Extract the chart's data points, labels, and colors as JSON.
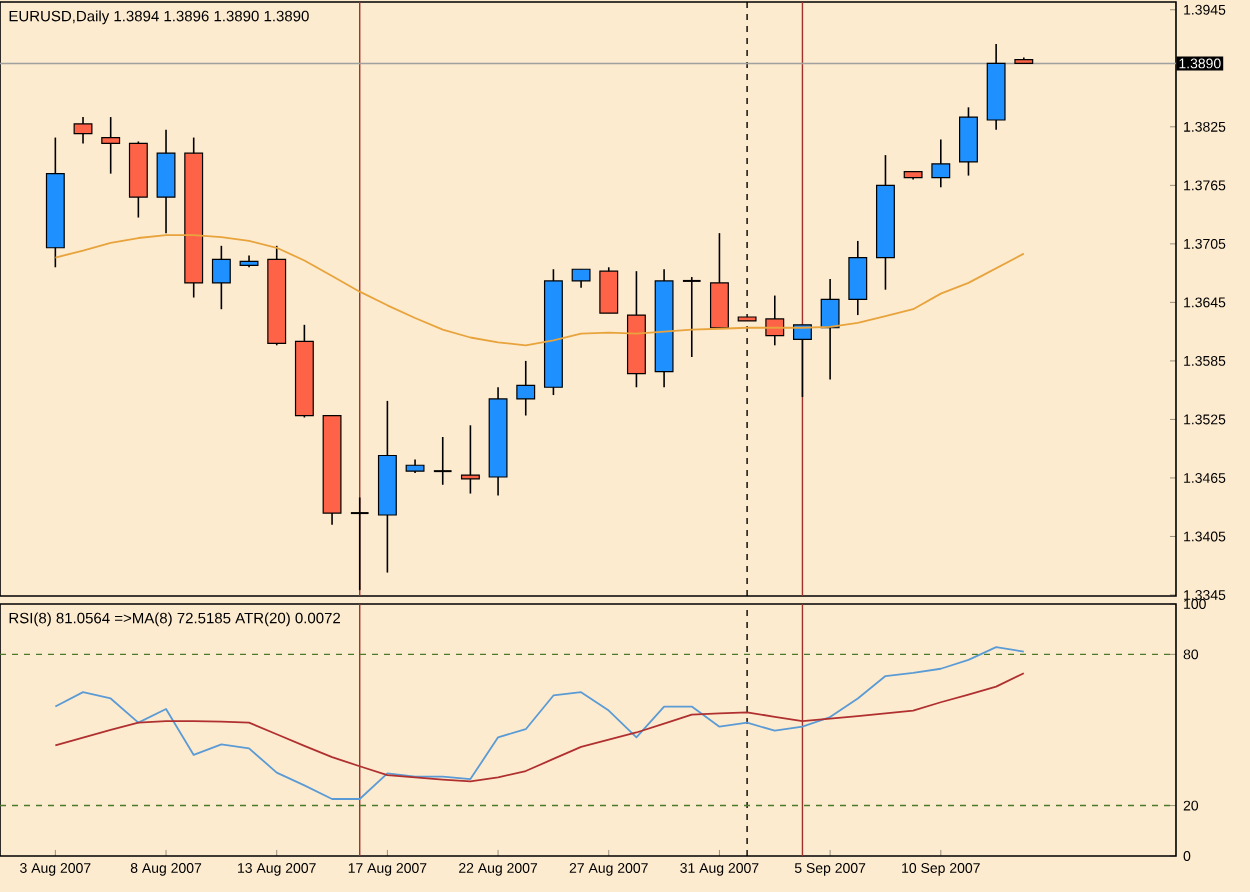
{
  "chart_data": [
    {
      "type": "candlestick",
      "title": "EURUSD,Daily  1.3894 1.3896 1.3890 1.3890",
      "categories": [
        null,
        null,
        null,
        null,
        null,
        null,
        null,
        null,
        null,
        null,
        null,
        null,
        null,
        null,
        null,
        null,
        null,
        null,
        null,
        null,
        null,
        null,
        null,
        null,
        null,
        null,
        null,
        null,
        null,
        null,
        null,
        null,
        null,
        null,
        null,
        null
      ],
      "ohlc": [
        [
          1.3701,
          1.3814,
          1.3681,
          1.3777
        ],
        [
          1.3828,
          1.3835,
          1.3808,
          1.3818
        ],
        [
          1.3814,
          1.3835,
          1.3777,
          1.3808
        ],
        [
          1.3808,
          1.381,
          1.3732,
          1.3753
        ],
        [
          1.3753,
          1.3822,
          1.3716,
          1.3798
        ],
        [
          1.3798,
          1.3814,
          1.365,
          1.3665
        ],
        [
          1.3665,
          1.3703,
          1.3638,
          1.3689
        ],
        [
          1.3683,
          1.3693,
          1.3681,
          1.3687
        ],
        [
          1.3689,
          1.3703,
          1.3601,
          1.3603
        ],
        [
          1.3605,
          1.3622,
          1.3527,
          1.3529
        ],
        [
          1.3529,
          1.3529,
          1.3417,
          1.3429
        ],
        [
          1.3429,
          1.3445,
          1.335,
          1.3429
        ],
        [
          1.3427,
          1.3544,
          1.3368,
          1.3488
        ],
        [
          1.3472,
          1.3484,
          1.347,
          1.3478
        ],
        [
          1.3472,
          1.3507,
          1.3458,
          1.3472
        ],
        [
          1.3468,
          1.3519,
          1.3449,
          1.3464
        ],
        [
          1.3466,
          1.3558,
          1.3447,
          1.3546
        ],
        [
          1.3546,
          1.3585,
          1.3529,
          1.356
        ],
        [
          1.3558,
          1.3679,
          1.355,
          1.3667
        ],
        [
          1.3667,
          1.3679,
          1.366,
          1.3679
        ],
        [
          1.3677,
          1.3681,
          1.3634,
          1.3634
        ],
        [
          1.3632,
          1.3677,
          1.3558,
          1.3572
        ],
        [
          1.3574,
          1.3679,
          1.3558,
          1.3667
        ],
        [
          1.3667,
          1.3671,
          1.3589,
          1.3667
        ],
        [
          1.3665,
          1.3716,
          1.3619,
          1.3619
        ],
        [
          1.363,
          1.363,
          1.3626,
          1.3626
        ],
        [
          1.3628,
          1.3652,
          1.3601,
          1.3611
        ],
        [
          1.3607,
          1.3622,
          1.3548,
          1.3622
        ],
        [
          1.3619,
          1.3669,
          1.3566,
          1.3648
        ],
        [
          1.3648,
          1.3708,
          1.3632,
          1.3691
        ],
        [
          1.3691,
          1.3796,
          1.3658,
          1.3765
        ],
        [
          1.3779,
          1.3779,
          1.3771,
          1.3773
        ],
        [
          1.3773,
          1.3812,
          1.3763,
          1.3787
        ],
        [
          1.3789,
          1.3845,
          1.3775,
          1.3835
        ],
        [
          1.3832,
          1.391,
          1.3822,
          1.389
        ],
        [
          1.3894,
          1.3896,
          1.389,
          1.389
        ]
      ],
      "colors": [
        "#1e90ff",
        "#ff6347",
        "#ff6347",
        "#ff6347",
        "#1e90ff",
        "#ff6347",
        "#1e90ff",
        "#1e90ff",
        "#ff6347",
        "#ff6347",
        "#ff6347",
        "#000000",
        "#1e90ff",
        "#1e90ff",
        "#000000",
        "#ff6347",
        "#1e90ff",
        "#1e90ff",
        "#1e90ff",
        "#1e90ff",
        "#ff6347",
        "#ff6347",
        "#1e90ff",
        "#000000",
        "#ff6347",
        "#ff6347",
        "#ff6347",
        "#1e90ff",
        "#1e90ff",
        "#1e90ff",
        "#1e90ff",
        "#ff6347",
        "#1e90ff",
        "#1e90ff",
        "#1e90ff",
        "#ff6347"
      ],
      "series": [
        {
          "type": "line",
          "color": "#e8a33c",
          "values": [
            1.3691,
            1.3698,
            1.3706,
            1.3711,
            1.3714,
            1.3714,
            1.3712,
            1.3708,
            1.3701,
            1.3688,
            1.3672,
            1.3656,
            1.3642,
            1.3629,
            1.3617,
            1.3609,
            1.3604,
            1.3601,
            1.3606,
            1.3613,
            1.3614,
            1.3613,
            1.3615,
            1.3617,
            1.3618,
            1.3619,
            1.3619,
            1.3619,
            1.362,
            1.3624,
            1.3631,
            1.3638,
            1.3654,
            1.3665,
            1.368,
            1.3695
          ]
        }
      ],
      "ylim": [
        1.3344,
        1.3953
      ],
      "yticks": [
        1.3945,
        1.3825,
        1.3765,
        1.3705,
        1.3645,
        1.3585,
        1.3525,
        1.3465,
        1.3405,
        1.3345
      ],
      "ref_lines": [
        {
          "axis": "y",
          "value": 1.389,
          "label": "1.3890",
          "color": "#a0a0a0"
        }
      ]
    },
    {
      "type": "line",
      "title": "RSI(8) 81.0564  =>MA(8) 72.5185  ATR(20) 0.0072",
      "categories": [
        "3 Aug 2007",
        null,
        null,
        null,
        "8 Aug 2007",
        null,
        null,
        null,
        "13 Aug 2007",
        null,
        null,
        null,
        "17 Aug 2007",
        null,
        null,
        null,
        "22 Aug 2007",
        null,
        null,
        null,
        "27 Aug 2007",
        null,
        null,
        null,
        "31 Aug 2007",
        null,
        null,
        null,
        "5 Sep 2007",
        null,
        null,
        null,
        "10 Sep 2007",
        null,
        null,
        null
      ],
      "series": [
        {
          "color": "#5b9bd5",
          "values": [
            59.3,
            65.0,
            62.5,
            52.9,
            58.3,
            40.1,
            44.3,
            42.7,
            33.1,
            28.0,
            22.6,
            22.6,
            32.8,
            31.5,
            31.5,
            30.5,
            47.1,
            50.3,
            63.7,
            65.0,
            57.7,
            47.1,
            59.3,
            59.3,
            51.3,
            52.9,
            49.7,
            51.3,
            55.1,
            62.5,
            71.4,
            72.7,
            74.3,
            77.8,
            82.9,
            81.1
          ]
        },
        {
          "color": "#b03030",
          "values": [
            43.9,
            47.0,
            50.0,
            52.9,
            53.5,
            53.5,
            53.3,
            52.9,
            48.3,
            43.7,
            39.2,
            35.6,
            32.1,
            31.2,
            30.3,
            29.6,
            31.2,
            33.7,
            38.5,
            43.3,
            46.2,
            49.0,
            52.5,
            56.1,
            56.6,
            57.0,
            55.2,
            53.5,
            54.5,
            55.5,
            56.6,
            57.7,
            61.0,
            64.0,
            67.2,
            72.5
          ]
        }
      ],
      "ylim": [
        0,
        100
      ],
      "yticks": [
        0,
        20,
        80,
        100
      ],
      "ref_lines": [
        {
          "axis": "y",
          "value": 80,
          "color": "#4a7a2a",
          "line_style": "dashed"
        },
        {
          "axis": "y",
          "value": 20,
          "color": "#4a7a2a",
          "line_style": "dashed"
        }
      ]
    }
  ]
}
